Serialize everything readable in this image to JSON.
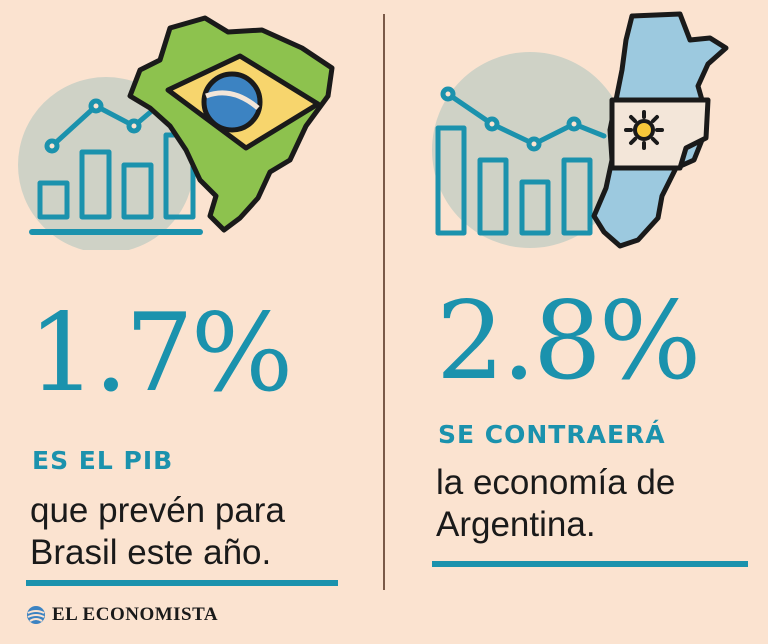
{
  "colors": {
    "accent": "#1b92ad",
    "background": "#fbe3d0",
    "brazil_green": "#8dc24e",
    "brazil_yellow": "#f7d56d",
    "brazil_blue": "#3c83c2",
    "argentina_blue": "#9cc9df",
    "argentina_white": "#f3e6d9",
    "argentina_sun": "#f7c83a"
  },
  "icons": {
    "brazil": "brazil-map-icon",
    "argentina": "argentina-map-icon",
    "chart": "bar-line-chart-icon"
  },
  "left": {
    "stat": "1.7%",
    "headline": "ES EL PIB",
    "line1": "que prevén para",
    "line2": "Brasil este año."
  },
  "right": {
    "stat": "2.8%",
    "headline": "SE CONTRAERÁ",
    "line1": "la economía de",
    "line2": "Argentina."
  },
  "brand": {
    "name": "EL ECONOMISTA"
  }
}
